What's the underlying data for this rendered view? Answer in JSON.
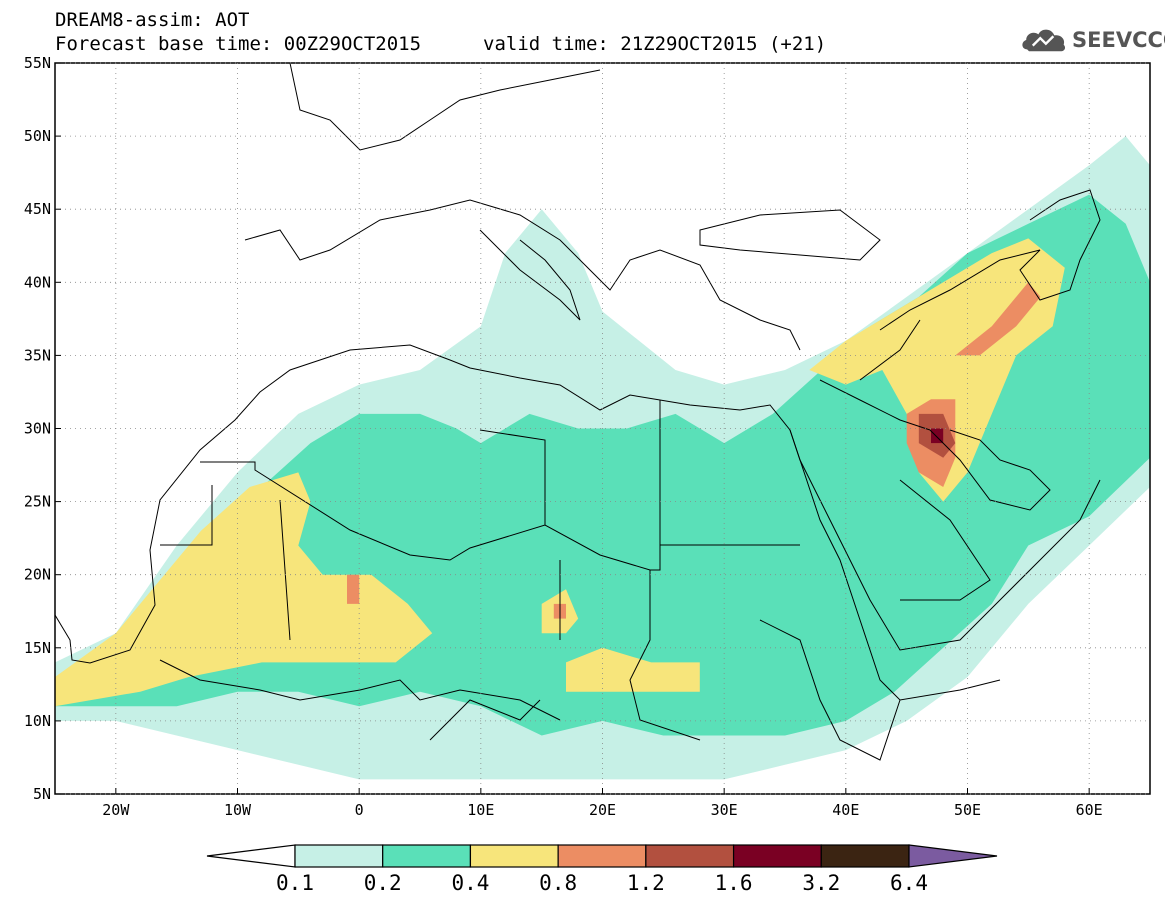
{
  "title_line1": "DREAM8-assim: AOT",
  "title_base": "Forecast base time: 00Z29OCT2015",
  "title_valid": "valid time: 21Z29OCT2015 (+21)",
  "logo_text": "SEEVCCC",
  "lat_labels": [
    "55N",
    "50N",
    "45N",
    "40N",
    "35N",
    "30N",
    "25N",
    "20N",
    "15N",
    "10N",
    "5N"
  ],
  "lon_labels": [
    "20W",
    "10W",
    "0",
    "10E",
    "20E",
    "30E",
    "40E",
    "50E",
    "60E"
  ],
  "colorbar": {
    "labels": [
      "0.1",
      "0.2",
      "0.4",
      "0.8",
      "1.2",
      "1.6",
      "3.2",
      "6.4"
    ],
    "colors": [
      "#ffffff",
      "#c6f0e6",
      "#5ae0b8",
      "#f7e57b",
      "#ec8d63",
      "#b2503f",
      "#7a0023",
      "#3b2412",
      "#7b5ba0"
    ]
  },
  "chart_data": {
    "type": "heatmap",
    "variable": "AOT",
    "xlim": [
      -25,
      65
    ],
    "ylim": [
      5,
      55
    ],
    "x_ticks": [
      -20,
      -10,
      0,
      10,
      20,
      30,
      40,
      50,
      60
    ],
    "y_ticks": [
      55,
      50,
      45,
      40,
      35,
      30,
      25,
      20,
      15,
      10,
      5
    ],
    "levels": [
      0.1,
      0.2,
      0.4,
      0.8,
      1.2,
      1.6,
      3.2,
      6.4
    ],
    "regions": [
      {
        "level": 0.1,
        "points": [
          [
            -25,
            14
          ],
          [
            -20,
            16
          ],
          [
            -15,
            22
          ],
          [
            -10,
            27
          ],
          [
            -5,
            31
          ],
          [
            0,
            33
          ],
          [
            5,
            34
          ],
          [
            10,
            37
          ],
          [
            12,
            42
          ],
          [
            15,
            45
          ],
          [
            18,
            42
          ],
          [
            20,
            38
          ],
          [
            26,
            34
          ],
          [
            30,
            33
          ],
          [
            35,
            34
          ],
          [
            40,
            36
          ],
          [
            45,
            39
          ],
          [
            50,
            42
          ],
          [
            55,
            45
          ],
          [
            60,
            48
          ],
          [
            63,
            50
          ],
          [
            65,
            48
          ],
          [
            65,
            26
          ],
          [
            60,
            22
          ],
          [
            55,
            18
          ],
          [
            50,
            13
          ],
          [
            45,
            10
          ],
          [
            40,
            8
          ],
          [
            35,
            7
          ],
          [
            30,
            6
          ],
          [
            20,
            6
          ],
          [
            10,
            6
          ],
          [
            0,
            6
          ],
          [
            -10,
            8
          ],
          [
            -20,
            10
          ],
          [
            -25,
            10
          ]
        ]
      },
      {
        "level": 0.2,
        "points": [
          [
            -25,
            12
          ],
          [
            -20,
            14
          ],
          [
            -15,
            18
          ],
          [
            -12,
            22
          ],
          [
            -8,
            26
          ],
          [
            -4,
            29
          ],
          [
            0,
            31
          ],
          [
            5,
            31
          ],
          [
            8,
            30
          ],
          [
            10,
            29
          ],
          [
            14,
            31
          ],
          [
            18,
            30
          ],
          [
            22,
            30
          ],
          [
            26,
            31
          ],
          [
            30,
            29
          ],
          [
            34,
            31
          ],
          [
            38,
            34
          ],
          [
            42,
            37
          ],
          [
            46,
            39
          ],
          [
            50,
            42
          ],
          [
            55,
            44
          ],
          [
            60,
            46
          ],
          [
            63,
            44
          ],
          [
            65,
            40
          ],
          [
            65,
            28
          ],
          [
            60,
            24
          ],
          [
            55,
            22
          ],
          [
            52,
            18
          ],
          [
            48,
            15
          ],
          [
            44,
            12
          ],
          [
            40,
            10
          ],
          [
            35,
            9
          ],
          [
            30,
            9
          ],
          [
            25,
            9
          ],
          [
            20,
            10
          ],
          [
            15,
            9
          ],
          [
            10,
            11
          ],
          [
            5,
            12
          ],
          [
            0,
            11
          ],
          [
            -5,
            12
          ],
          [
            -10,
            12
          ],
          [
            -15,
            11
          ],
          [
            -20,
            11
          ],
          [
            -25,
            11
          ]
        ]
      },
      {
        "level": 0.4,
        "points": [
          [
            -25,
            13
          ],
          [
            -20,
            16
          ],
          [
            -17,
            19
          ],
          [
            -13,
            23
          ],
          [
            -9,
            26
          ],
          [
            -5,
            27
          ],
          [
            -4,
            25
          ],
          [
            -5,
            22
          ],
          [
            -3,
            20
          ],
          [
            1,
            20
          ],
          [
            4,
            18
          ],
          [
            6,
            16
          ],
          [
            3,
            14
          ],
          [
            -2,
            14
          ],
          [
            -8,
            14
          ],
          [
            -14,
            13
          ],
          [
            -18,
            12
          ],
          [
            -25,
            11
          ]
        ]
      },
      {
        "level": 0.4,
        "points": [
          [
            37,
            34
          ],
          [
            40,
            36
          ],
          [
            44,
            38
          ],
          [
            48,
            40
          ],
          [
            52,
            42
          ],
          [
            55,
            43
          ],
          [
            58,
            41
          ],
          [
            57,
            37
          ],
          [
            54,
            35
          ],
          [
            52,
            31
          ],
          [
            50,
            27
          ],
          [
            48,
            25
          ],
          [
            46,
            27
          ],
          [
            45,
            31
          ],
          [
            43,
            34
          ],
          [
            40,
            33
          ]
        ]
      },
      {
        "level": 0.4,
        "points": [
          [
            15,
            18
          ],
          [
            17,
            19
          ],
          [
            18,
            17
          ],
          [
            17,
            16
          ],
          [
            15,
            16
          ]
        ]
      },
      {
        "level": 0.4,
        "points": [
          [
            17,
            14
          ],
          [
            20,
            15
          ],
          [
            24,
            14
          ],
          [
            28,
            14
          ],
          [
            28,
            12
          ],
          [
            24,
            12
          ],
          [
            20,
            12
          ],
          [
            17,
            12
          ]
        ]
      },
      {
        "level": 0.8,
        "points": [
          [
            -1,
            20
          ],
          [
            0,
            20
          ],
          [
            0,
            18
          ],
          [
            -1,
            18
          ]
        ]
      },
      {
        "level": 0.8,
        "points": [
          [
            16,
            18
          ],
          [
            17,
            18
          ],
          [
            17,
            17
          ],
          [
            16,
            17
          ]
        ]
      },
      {
        "level": 0.8,
        "points": [
          [
            45,
            31
          ],
          [
            47,
            32
          ],
          [
            49,
            32
          ],
          [
            49,
            28
          ],
          [
            48,
            26
          ],
          [
            46,
            27
          ],
          [
            45,
            29
          ]
        ]
      },
      {
        "level": 0.8,
        "points": [
          [
            49,
            35
          ],
          [
            52,
            37
          ],
          [
            55,
            40
          ],
          [
            56,
            39
          ],
          [
            54,
            37
          ],
          [
            51,
            35
          ]
        ]
      },
      {
        "level": 1.2,
        "points": [
          [
            46,
            31
          ],
          [
            48,
            31
          ],
          [
            49,
            29
          ],
          [
            48,
            28
          ],
          [
            46,
            29
          ]
        ]
      },
      {
        "level": 1.6,
        "points": [
          [
            47,
            30
          ],
          [
            48,
            30
          ],
          [
            48,
            29
          ],
          [
            47,
            29
          ]
        ]
      }
    ],
    "countries_note": "Political boundaries and coastlines of Europe, North Africa, the Middle East and Arabian Peninsula drawn as outline lines"
  }
}
